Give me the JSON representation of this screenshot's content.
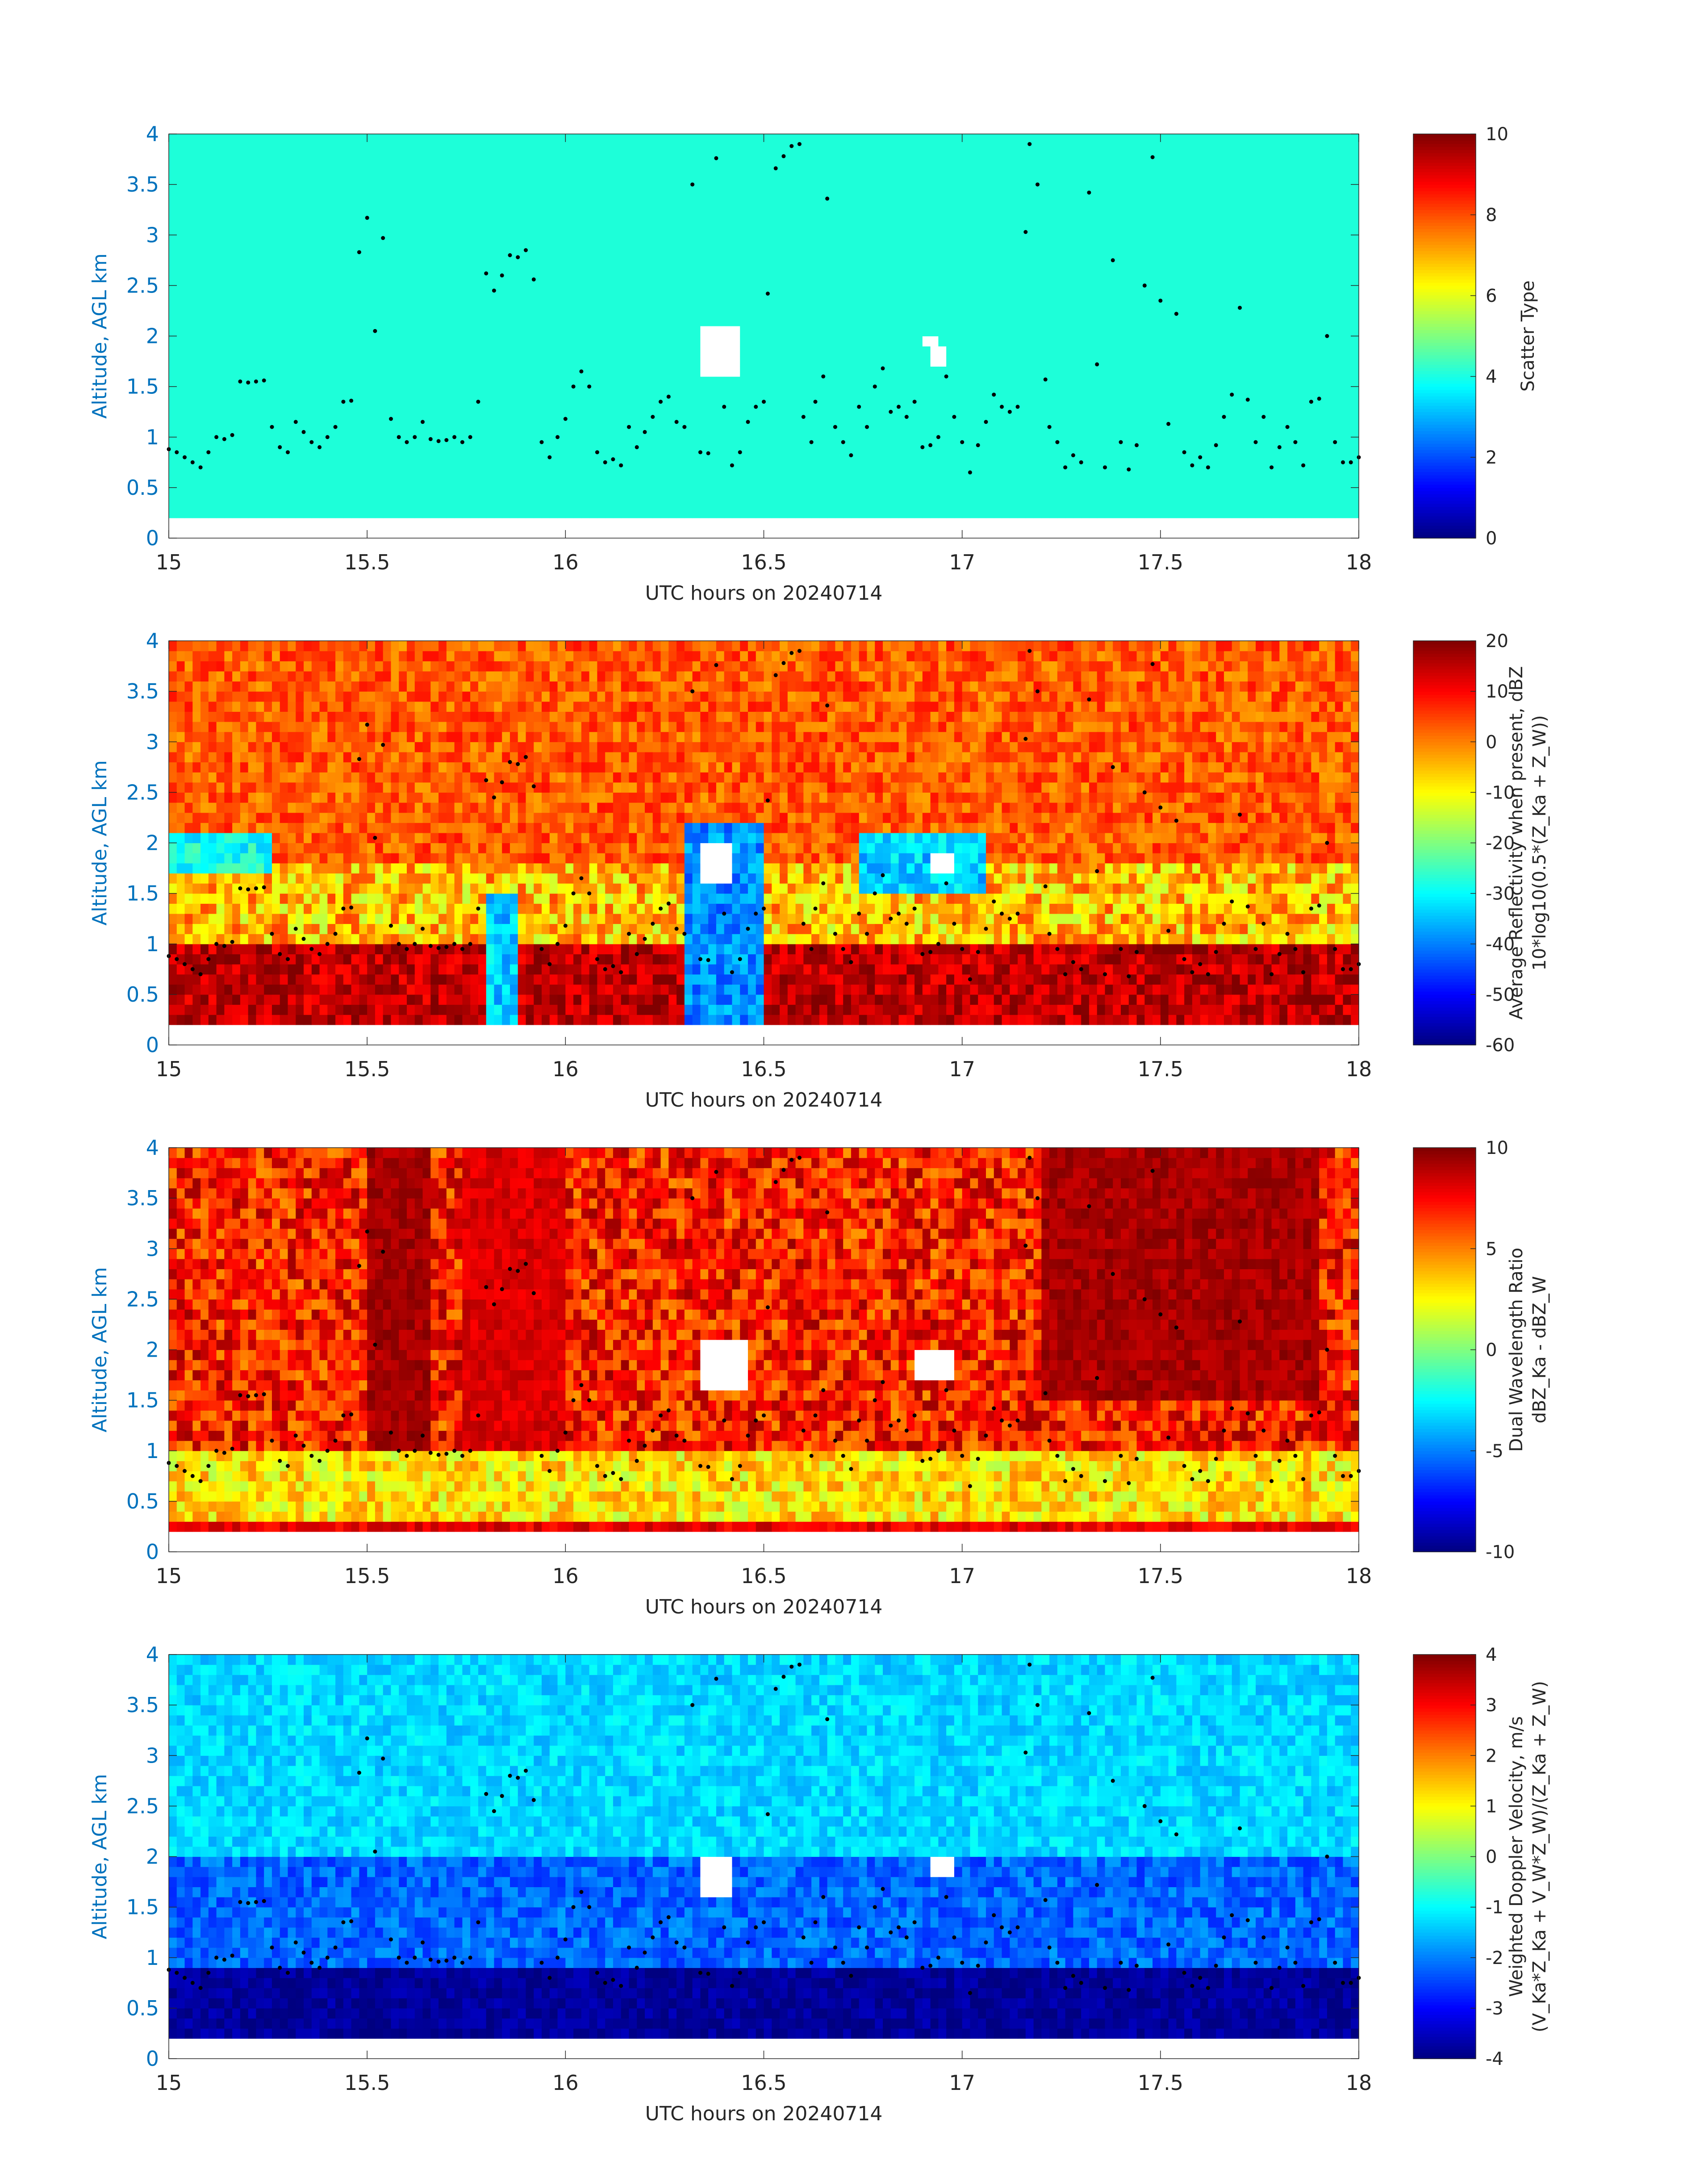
{
  "figure": {
    "xlabel": "UTC hours on 20240714",
    "ylabel": "Altitude, AGL km",
    "x_ticks": [
      "15",
      "15.5",
      "16",
      "16.5",
      "17",
      "17.5",
      "18"
    ],
    "y_ticks": [
      "0",
      "0.5",
      "1",
      "1.5",
      "2",
      "2.5",
      "3",
      "3.5",
      "4"
    ],
    "axis_color": "#0072bd",
    "colormap": "jet",
    "field_colors": {
      "scatter_type_fill": "#1dffd9",
      "marker": "#000000",
      "missing": "#ffffff"
    }
  },
  "chart_data": [
    {
      "type": "heatmap",
      "field": "scatter_type",
      "xlabel": "UTC hours on 20240714",
      "ylabel": "Altitude, AGL km",
      "xlim": [
        15,
        18
      ],
      "ylim": [
        0,
        4
      ],
      "data_altitude_range_km": [
        0.2,
        4.0
      ],
      "colorbar": {
        "label_lines": [
          "Scatter Type"
        ],
        "ticks": [
          "0",
          "2",
          "4",
          "6",
          "8",
          "10"
        ],
        "clim": [
          0,
          10
        ]
      },
      "dominant_value": 4.3,
      "missing_regions": [
        {
          "x": [
            16.35,
            16.43
          ],
          "y": [
            1.55,
            2.05
          ]
        },
        {
          "x": [
            16.91,
            16.93
          ],
          "y": [
            1.9,
            2.0
          ]
        },
        {
          "x": [
            16.93,
            16.96
          ],
          "y": [
            1.7,
            1.85
          ]
        }
      ]
    },
    {
      "type": "heatmap",
      "field": "average_reflectivity",
      "xlabel": "UTC hours on 20240714",
      "ylabel": "Altitude, AGL km",
      "xlim": [
        15,
        18
      ],
      "ylim": [
        0,
        4
      ],
      "data_altitude_range_km": [
        0.2,
        4.0
      ],
      "colorbar": {
        "label_lines": [
          "Average Reflectivity when present, dBZ",
          "10*log10(0.5*(Z_Ka + Z_W))"
        ],
        "ticks": [
          "20",
          "10",
          "0",
          "-10",
          "-20",
          "-30",
          "-40",
          "-50",
          "-60"
        ],
        "clim": [
          -60,
          20
        ]
      },
      "typical_values": {
        "below_1km": 15,
        "1_to_1.8km": -5,
        "above_2km": 3
      },
      "weak_regions": [
        {
          "x": [
            16.3,
            16.5
          ],
          "y": [
            0.2,
            2.2
          ],
          "min": -45
        },
        {
          "x": [
            15.8,
            15.88
          ],
          "y": [
            0.2,
            1.5
          ],
          "min": -40
        },
        {
          "x": [
            16.75,
            17.05
          ],
          "y": [
            1.5,
            2.1
          ],
          "min": -40
        },
        {
          "x": [
            15.0,
            15.25
          ],
          "y": [
            1.7,
            2.1
          ],
          "min": -35
        }
      ],
      "missing_regions": [
        {
          "x": [
            16.35,
            16.42
          ],
          "y": [
            1.55,
            1.95
          ]
        },
        {
          "x": [
            16.92,
            16.98
          ],
          "y": [
            1.7,
            1.9
          ]
        }
      ]
    },
    {
      "type": "heatmap",
      "field": "dual_wavelength_ratio",
      "xlabel": "UTC hours on 20240714",
      "ylabel": "Altitude, AGL km",
      "xlim": [
        15,
        18
      ],
      "ylim": [
        0,
        4
      ],
      "data_altitude_range_km": [
        0.2,
        4.0
      ],
      "colorbar": {
        "label_lines": [
          "Dual Wavelength Ratio",
          "dBZ_Ka - dBZ_W"
        ],
        "ticks": [
          "10",
          "5",
          "0",
          "-5",
          "-10"
        ],
        "clim": [
          -10,
          10
        ]
      },
      "typical_values": {
        "below_1km": 3,
        "above_1km": 7,
        "bottom_gate": 8
      },
      "strong_regions": [
        {
          "x": [
            17.2,
            17.9
          ],
          "y": [
            1.5,
            4.0
          ],
          "max": 10
        },
        {
          "x": [
            15.5,
            15.65
          ],
          "y": [
            1.0,
            4.0
          ],
          "max": 10
        },
        {
          "x": [
            15.75,
            16.0
          ],
          "y": [
            1.0,
            4.0
          ],
          "max": 9
        }
      ],
      "missing_regions": [
        {
          "x": [
            16.35,
            16.45
          ],
          "y": [
            1.55,
            2.05
          ]
        },
        {
          "x": [
            16.88,
            16.98
          ],
          "y": [
            1.7,
            2.0
          ]
        }
      ]
    },
    {
      "type": "heatmap",
      "field": "weighted_doppler_velocity",
      "xlabel": "UTC hours on 20240714",
      "ylabel": "Altitude, AGL km",
      "xlim": [
        15,
        18
      ],
      "ylim": [
        0,
        4
      ],
      "data_altitude_range_km": [
        0.2,
        4.0
      ],
      "colorbar": {
        "label_lines": [
          "Weighted Doppler Velocity, m/s",
          "(V_Ka*Z_Ka + V_W*Z_W)/(Z_Ka + Z_W)"
        ],
        "ticks": [
          "4",
          "3",
          "2",
          "1",
          "0",
          "-1",
          "-2",
          "-3",
          "-4"
        ],
        "clim": [
          -4,
          4
        ]
      },
      "typical_values": {
        "below_0.9km": -3.8,
        "0.9_to_2km": -2.2,
        "above_2km": -1.3
      },
      "missing_regions": [
        {
          "x": [
            16.35,
            16.42
          ],
          "y": [
            1.55,
            1.95
          ]
        },
        {
          "x": [
            16.92,
            16.98
          ],
          "y": [
            1.8,
            2.0
          ]
        }
      ]
    }
  ],
  "markers": {
    "color": "#000000",
    "points": [
      [
        15.0,
        0.88
      ],
      [
        15.02,
        0.85
      ],
      [
        15.04,
        0.8
      ],
      [
        15.06,
        0.75
      ],
      [
        15.08,
        0.7
      ],
      [
        15.1,
        0.85
      ],
      [
        15.12,
        1.0
      ],
      [
        15.14,
        0.98
      ],
      [
        15.16,
        1.02
      ],
      [
        15.18,
        1.55
      ],
      [
        15.2,
        1.54
      ],
      [
        15.22,
        1.55
      ],
      [
        15.24,
        1.56
      ],
      [
        15.26,
        1.1
      ],
      [
        15.28,
        0.9
      ],
      [
        15.3,
        0.85
      ],
      [
        15.32,
        1.15
      ],
      [
        15.34,
        1.05
      ],
      [
        15.36,
        0.95
      ],
      [
        15.38,
        0.9
      ],
      [
        15.4,
        1.0
      ],
      [
        15.42,
        1.1
      ],
      [
        15.44,
        1.35
      ],
      [
        15.46,
        1.36
      ],
      [
        15.48,
        2.83
      ],
      [
        15.5,
        3.17
      ],
      [
        15.52,
        2.05
      ],
      [
        15.54,
        2.97
      ],
      [
        15.56,
        1.18
      ],
      [
        15.58,
        1.0
      ],
      [
        15.6,
        0.95
      ],
      [
        15.62,
        1.0
      ],
      [
        15.64,
        1.15
      ],
      [
        15.66,
        0.98
      ],
      [
        15.68,
        0.96
      ],
      [
        15.7,
        0.97
      ],
      [
        15.72,
        1.0
      ],
      [
        15.74,
        0.95
      ],
      [
        15.76,
        1.0
      ],
      [
        15.78,
        1.35
      ],
      [
        15.8,
        2.62
      ],
      [
        15.82,
        2.45
      ],
      [
        15.84,
        2.6
      ],
      [
        15.86,
        2.8
      ],
      [
        15.88,
        2.78
      ],
      [
        15.9,
        2.85
      ],
      [
        15.92,
        2.56
      ],
      [
        15.94,
        0.95
      ],
      [
        15.96,
        0.8
      ],
      [
        15.98,
        1.0
      ],
      [
        16.0,
        1.18
      ],
      [
        16.02,
        1.5
      ],
      [
        16.04,
        1.65
      ],
      [
        16.06,
        1.5
      ],
      [
        16.08,
        0.85
      ],
      [
        16.1,
        0.75
      ],
      [
        16.12,
        0.78
      ],
      [
        16.14,
        0.72
      ],
      [
        16.16,
        1.1
      ],
      [
        16.18,
        0.9
      ],
      [
        16.2,
        1.05
      ],
      [
        16.22,
        1.2
      ],
      [
        16.24,
        1.35
      ],
      [
        16.26,
        1.4
      ],
      [
        16.28,
        1.15
      ],
      [
        16.3,
        1.1
      ],
      [
        16.32,
        3.5
      ],
      [
        16.34,
        0.85
      ],
      [
        16.36,
        0.84
      ],
      [
        16.38,
        3.76
      ],
      [
        16.4,
        1.3
      ],
      [
        16.42,
        0.72
      ],
      [
        16.44,
        0.85
      ],
      [
        16.46,
        1.15
      ],
      [
        16.48,
        1.3
      ],
      [
        16.5,
        1.35
      ],
      [
        16.51,
        2.42
      ],
      [
        16.53,
        3.66
      ],
      [
        16.55,
        3.78
      ],
      [
        16.57,
        3.88
      ],
      [
        16.59,
        3.9
      ],
      [
        16.6,
        1.2
      ],
      [
        16.62,
        0.95
      ],
      [
        16.63,
        1.35
      ],
      [
        16.65,
        1.6
      ],
      [
        16.66,
        3.36
      ],
      [
        16.68,
        1.1
      ],
      [
        16.7,
        0.95
      ],
      [
        16.72,
        0.82
      ],
      [
        16.74,
        1.3
      ],
      [
        16.76,
        1.1
      ],
      [
        16.78,
        1.5
      ],
      [
        16.8,
        1.68
      ],
      [
        16.82,
        1.25
      ],
      [
        16.84,
        1.3
      ],
      [
        16.86,
        1.2
      ],
      [
        16.88,
        1.35
      ],
      [
        16.9,
        0.9
      ],
      [
        16.92,
        0.92
      ],
      [
        16.94,
        1.0
      ],
      [
        16.96,
        1.6
      ],
      [
        16.98,
        1.2
      ],
      [
        17.0,
        0.95
      ],
      [
        17.02,
        0.65
      ],
      [
        17.04,
        0.92
      ],
      [
        17.06,
        1.15
      ],
      [
        17.08,
        1.42
      ],
      [
        17.1,
        1.3
      ],
      [
        17.12,
        1.25
      ],
      [
        17.14,
        1.3
      ],
      [
        17.16,
        3.03
      ],
      [
        17.17,
        3.9
      ],
      [
        17.19,
        3.5
      ],
      [
        17.21,
        1.57
      ],
      [
        17.22,
        1.1
      ],
      [
        17.24,
        0.95
      ],
      [
        17.26,
        0.7
      ],
      [
        17.28,
        0.82
      ],
      [
        17.3,
        0.75
      ],
      [
        17.32,
        3.42
      ],
      [
        17.34,
        1.72
      ],
      [
        17.36,
        0.7
      ],
      [
        17.38,
        2.75
      ],
      [
        17.4,
        0.95
      ],
      [
        17.42,
        0.68
      ],
      [
        17.44,
        0.92
      ],
      [
        17.46,
        2.5
      ],
      [
        17.48,
        3.77
      ],
      [
        17.5,
        2.35
      ],
      [
        17.52,
        1.13
      ],
      [
        17.54,
        2.22
      ],
      [
        17.56,
        0.85
      ],
      [
        17.58,
        0.72
      ],
      [
        17.6,
        0.8
      ],
      [
        17.62,
        0.7
      ],
      [
        17.64,
        0.92
      ],
      [
        17.66,
        1.2
      ],
      [
        17.68,
        1.42
      ],
      [
        17.7,
        2.28
      ],
      [
        17.72,
        1.37
      ],
      [
        17.74,
        0.95
      ],
      [
        17.76,
        1.2
      ],
      [
        17.78,
        0.7
      ],
      [
        17.8,
        0.9
      ],
      [
        17.82,
        1.1
      ],
      [
        17.84,
        0.95
      ],
      [
        17.86,
        0.72
      ],
      [
        17.88,
        1.35
      ],
      [
        17.9,
        1.38
      ],
      [
        17.92,
        2.0
      ],
      [
        17.94,
        0.95
      ],
      [
        17.96,
        0.75
      ],
      [
        17.98,
        0.75
      ],
      [
        18.0,
        0.8
      ],
      [
        18.02,
        0.92
      ],
      [
        18.04,
        1.1
      ]
    ]
  }
}
